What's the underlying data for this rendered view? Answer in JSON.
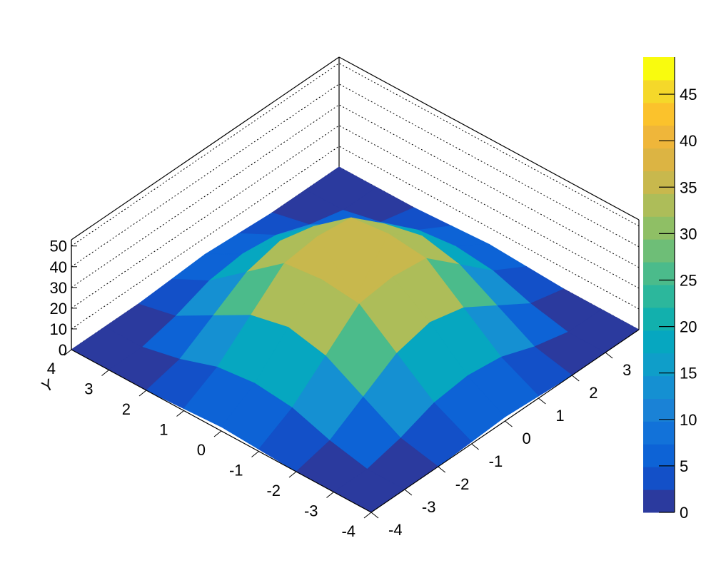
{
  "chart_data": {
    "type": "surface3d",
    "y_axis_title": "Y",
    "x": [
      -4,
      -3,
      -2,
      -1,
      0,
      1,
      2,
      3,
      4
    ],
    "y": [
      -4,
      -3,
      -2,
      -1,
      0,
      1,
      2,
      3,
      4
    ],
    "z": [
      [
        0,
        0,
        0,
        1,
        2,
        1,
        0,
        0,
        0
      ],
      [
        0,
        0,
        4,
        10,
        12,
        10,
        4,
        0,
        0
      ],
      [
        0,
        4,
        14,
        24,
        28,
        24,
        14,
        4,
        0
      ],
      [
        1,
        10,
        24,
        38,
        40,
        38,
        24,
        10,
        1
      ],
      [
        2,
        12,
        28,
        40,
        20,
        40,
        28,
        12,
        2
      ],
      [
        1,
        10,
        24,
        38,
        40,
        38,
        24,
        10,
        1
      ],
      [
        0,
        4,
        14,
        24,
        28,
        24,
        14,
        4,
        0
      ],
      [
        0,
        0,
        4,
        10,
        12,
        10,
        4,
        0,
        0
      ],
      [
        0,
        0,
        0,
        1,
        2,
        1,
        0,
        0,
        0
      ]
    ],
    "xlim": [
      -4,
      4
    ],
    "ylim": [
      -4,
      4
    ],
    "zlim": [
      0,
      53
    ],
    "xticks": [
      -4,
      -3,
      -2,
      -1,
      0,
      1,
      2,
      3
    ],
    "yticks": [
      -4,
      -3,
      -2,
      -1,
      0,
      1,
      2,
      3,
      4
    ],
    "zticks": [
      0,
      10,
      20,
      30,
      40,
      50
    ],
    "colorbar_lim": [
      0,
      49
    ],
    "colorbar_ticks": [
      0,
      5,
      10,
      15,
      20,
      25,
      30,
      35,
      40,
      45
    ],
    "palette": [
      "#2b3a9e",
      "#1350c8",
      "#0d63d6",
      "#1272d9",
      "#1a82d6",
      "#1590d2",
      "#0f9ec9",
      "#06a7c0",
      "#12b0ad",
      "#2cb79c",
      "#4bbb8b",
      "#6ebe77",
      "#8fbf65",
      "#adbd59",
      "#c8b84d",
      "#dcb443",
      "#efb63a",
      "#fbc22c",
      "#f5d82a",
      "#f9fb0e"
    ]
  }
}
